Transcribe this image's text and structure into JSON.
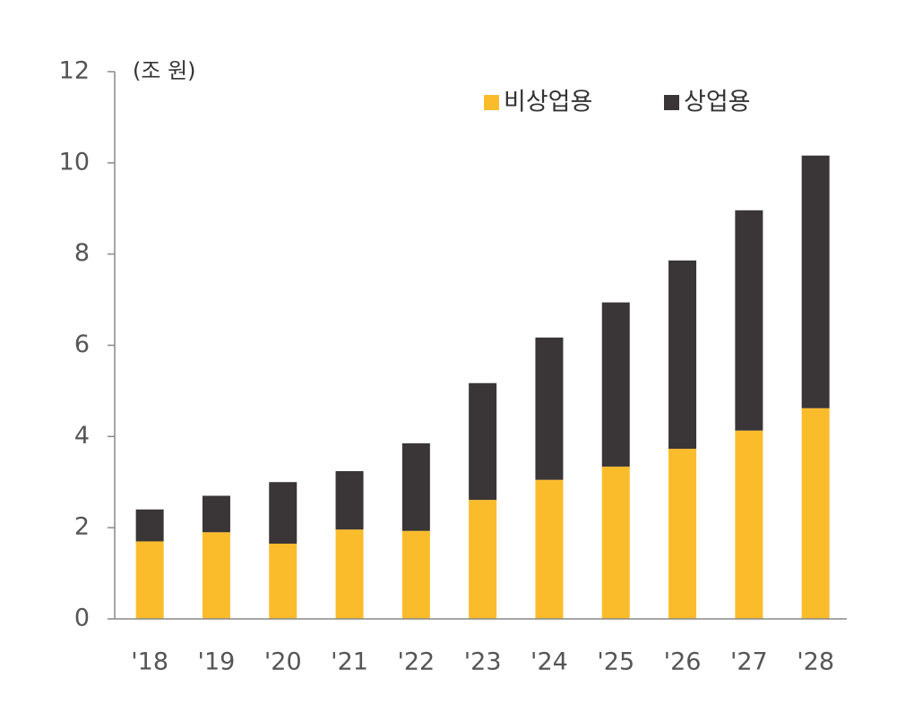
{
  "chart_data": {
    "type": "stacked_bar",
    "y_unit_label": "(조 원)",
    "categories": [
      "'18",
      "'19",
      "'20",
      "'21",
      "'22",
      "'23",
      "'24",
      "'25",
      "'26",
      "'27",
      "'28"
    ],
    "series": [
      {
        "name": "비상업용",
        "color": "#fbbc2c",
        "values": [
          1.7,
          1.9,
          1.65,
          1.96,
          1.93,
          2.61,
          3.05,
          3.34,
          3.73,
          4.13,
          4.62
        ]
      },
      {
        "name": "상업용",
        "color": "#3a3536",
        "values": [
          0.7,
          0.8,
          1.35,
          1.28,
          1.92,
          2.56,
          3.12,
          3.6,
          4.13,
          4.83,
          5.54
        ]
      }
    ],
    "ylim": [
      0,
      12
    ],
    "yticks": [
      0,
      2,
      4,
      6,
      8,
      10,
      12
    ]
  }
}
